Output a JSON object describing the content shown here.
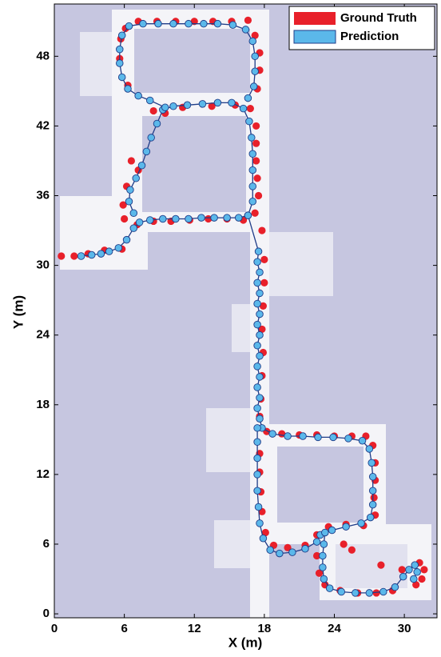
{
  "chart_data": {
    "type": "scatter",
    "xlabel": "X (m)",
    "ylabel": "Y (m)",
    "xlim": [
      0,
      32.8
    ],
    "ylim": [
      -0.34,
      52.5
    ],
    "xticks": [
      0,
      6,
      12,
      18,
      24,
      30
    ],
    "yticks": [
      0,
      6,
      12,
      18,
      24,
      30,
      36,
      42,
      48
    ],
    "legend": "upper right",
    "series": [
      {
        "name": "Ground Truth",
        "color": "#e8202a",
        "x": [
          0.6,
          1.7,
          2.9,
          4.3,
          5.8,
          6,
          5.9,
          7.1,
          8.5,
          10,
          11.6,
          13.2,
          14.8,
          16.2,
          17.2,
          17.5,
          17.4,
          17.3,
          17.3,
          17.3,
          16.8,
          15.5,
          13.5,
          11,
          9.5,
          8.5,
          6.6,
          6.2,
          7.2,
          6.3,
          5.6,
          5.7,
          6.1,
          7.2,
          8.8,
          10.4,
          12,
          13.6,
          15.2,
          16.6,
          17.2,
          17.6,
          17.6,
          17.4,
          17.8,
          18,
          18,
          17.9,
          17.8,
          17.9,
          17.8,
          17.7,
          17.6,
          18.2,
          19.5,
          21,
          22.5,
          24,
          25.5,
          26.7,
          27.3,
          27.5,
          27.5,
          27.4,
          27.5,
          26.5,
          25,
          23.5,
          22.5,
          21.5,
          20,
          18.8,
          18.1,
          17.8,
          17.7,
          17.6,
          17.6,
          22.5,
          22.7,
          23.2,
          24.5,
          26,
          27.6,
          29,
          29.8,
          31.3,
          31.7,
          31.5,
          31,
          28,
          25.5,
          24.8
        ],
        "values": [
          30.8,
          30.8,
          31,
          31.3,
          31.4,
          34,
          35.2,
          33.5,
          33.8,
          33.8,
          33.9,
          34,
          34,
          33.9,
          34.5,
          36,
          37.5,
          39,
          40.5,
          42,
          43.5,
          43.8,
          43.7,
          43.6,
          43.1,
          43.3,
          39,
          36.8,
          38.2,
          45.5,
          47.8,
          49.5,
          50.4,
          51,
          51,
          51,
          51,
          51,
          51,
          51.1,
          49.8,
          48.3,
          46.8,
          45.2,
          33,
          30.5,
          28.5,
          26.5,
          24.5,
          22.5,
          20.5,
          18.5,
          17,
          15.7,
          15.5,
          15.4,
          15.4,
          15.3,
          15.3,
          15.3,
          14.5,
          13,
          11.5,
          10,
          8.5,
          7.6,
          7.7,
          7.5,
          6.8,
          5.9,
          5.7,
          5.9,
          7,
          8.8,
          10.5,
          12.2,
          13.8,
          5,
          3.5,
          2.5,
          2,
          1.8,
          1.8,
          2,
          3.8,
          4.4,
          3.8,
          3,
          2.5,
          4.2,
          5.5,
          6
        ]
      },
      {
        "name": "Prediction",
        "color": "#5bb8ea",
        "line_color": "#1f3c88",
        "x": [
          2.3,
          3.2,
          4,
          4.7,
          5.5,
          6.2,
          6.8,
          7.3,
          8.2,
          9.3,
          10.4,
          11.5,
          12.6,
          13.7,
          14.8,
          15.8,
          16.6,
          17,
          17,
          17,
          17,
          16.9,
          16.7,
          16.2,
          15.2,
          14,
          12.7,
          11.4,
          10.2,
          9.3,
          8.8,
          8.3,
          7.9,
          7.5,
          7,
          6.5,
          6.4,
          6.8,
          null,
          9.5,
          8.2,
          7.2,
          6.3,
          5.8,
          5.6,
          5.6,
          5.8,
          6.4,
          7.6,
          8.9,
          10.2,
          11.5,
          12.8,
          14,
          15.3,
          16.4,
          17,
          17.2,
          17.2,
          17.1,
          16.6,
          null,
          16.6,
          17.5,
          17.4,
          17.6,
          17.4,
          17.6,
          17.4,
          17.6,
          17.4,
          17.6,
          17.4,
          17.6,
          17.4,
          17.6,
          17.4,
          17.6,
          17.4,
          17.6,
          17.8,
          18.7,
          20,
          21.3,
          22.6,
          23.9,
          25.2,
          26.4,
          27,
          27.2,
          27.3,
          27.3,
          27.3,
          27.1,
          26.3,
          25,
          23.8,
          22.8,
          22.5,
          21.5,
          20.4,
          19.3,
          18.5,
          17.9,
          17.6,
          17.5,
          17.4,
          17.4,
          17.4,
          17.4,
          17.4,
          null,
          23.2,
          23.1,
          23,
          23,
          23.1,
          23.6,
          24.6,
          25.8,
          27,
          28.2,
          29.2,
          29.9,
          30.4,
          30.9,
          31.1,
          30.8
        ],
        "values": [
          30.8,
          30.9,
          31,
          31.2,
          31.5,
          32.2,
          33.2,
          33.7,
          33.9,
          34,
          34,
          34,
          34.1,
          34.1,
          34.1,
          34.1,
          34.3,
          35.5,
          36.8,
          38.2,
          39.6,
          41,
          42.4,
          43.5,
          44,
          44,
          43.9,
          43.8,
          43.7,
          43.4,
          42.2,
          41,
          39.8,
          38.6,
          37.5,
          36.5,
          35.5,
          34.5,
          null,
          43.6,
          44.2,
          44.6,
          45.2,
          46.2,
          47.4,
          48.6,
          49.8,
          50.6,
          50.8,
          50.8,
          50.8,
          50.8,
          50.8,
          50.8,
          50.7,
          50.3,
          49.3,
          48,
          46.7,
          45.4,
          44.4,
          null,
          34.3,
          31.2,
          30.3,
          29.4,
          28.5,
          27.6,
          26.7,
          25.8,
          24.9,
          24,
          23.1,
          22.2,
          21.3,
          20.4,
          19.5,
          18.6,
          17.7,
          16.8,
          16,
          15.5,
          15.3,
          15.3,
          15.2,
          15.2,
          15.1,
          14.9,
          14.2,
          13,
          11.8,
          10.6,
          9.4,
          8.3,
          7.8,
          7.5,
          7.2,
          6.8,
          6.2,
          5.6,
          5.3,
          5.2,
          5.5,
          6.5,
          7.8,
          9.2,
          10.6,
          12,
          13.4,
          14.8,
          16,
          null,
          7,
          6,
          5,
          4,
          3,
          2.2,
          1.9,
          1.8,
          1.8,
          1.9,
          2.3,
          3.2,
          3.8,
          4.2,
          3.6,
          3
        ]
      }
    ]
  }
}
